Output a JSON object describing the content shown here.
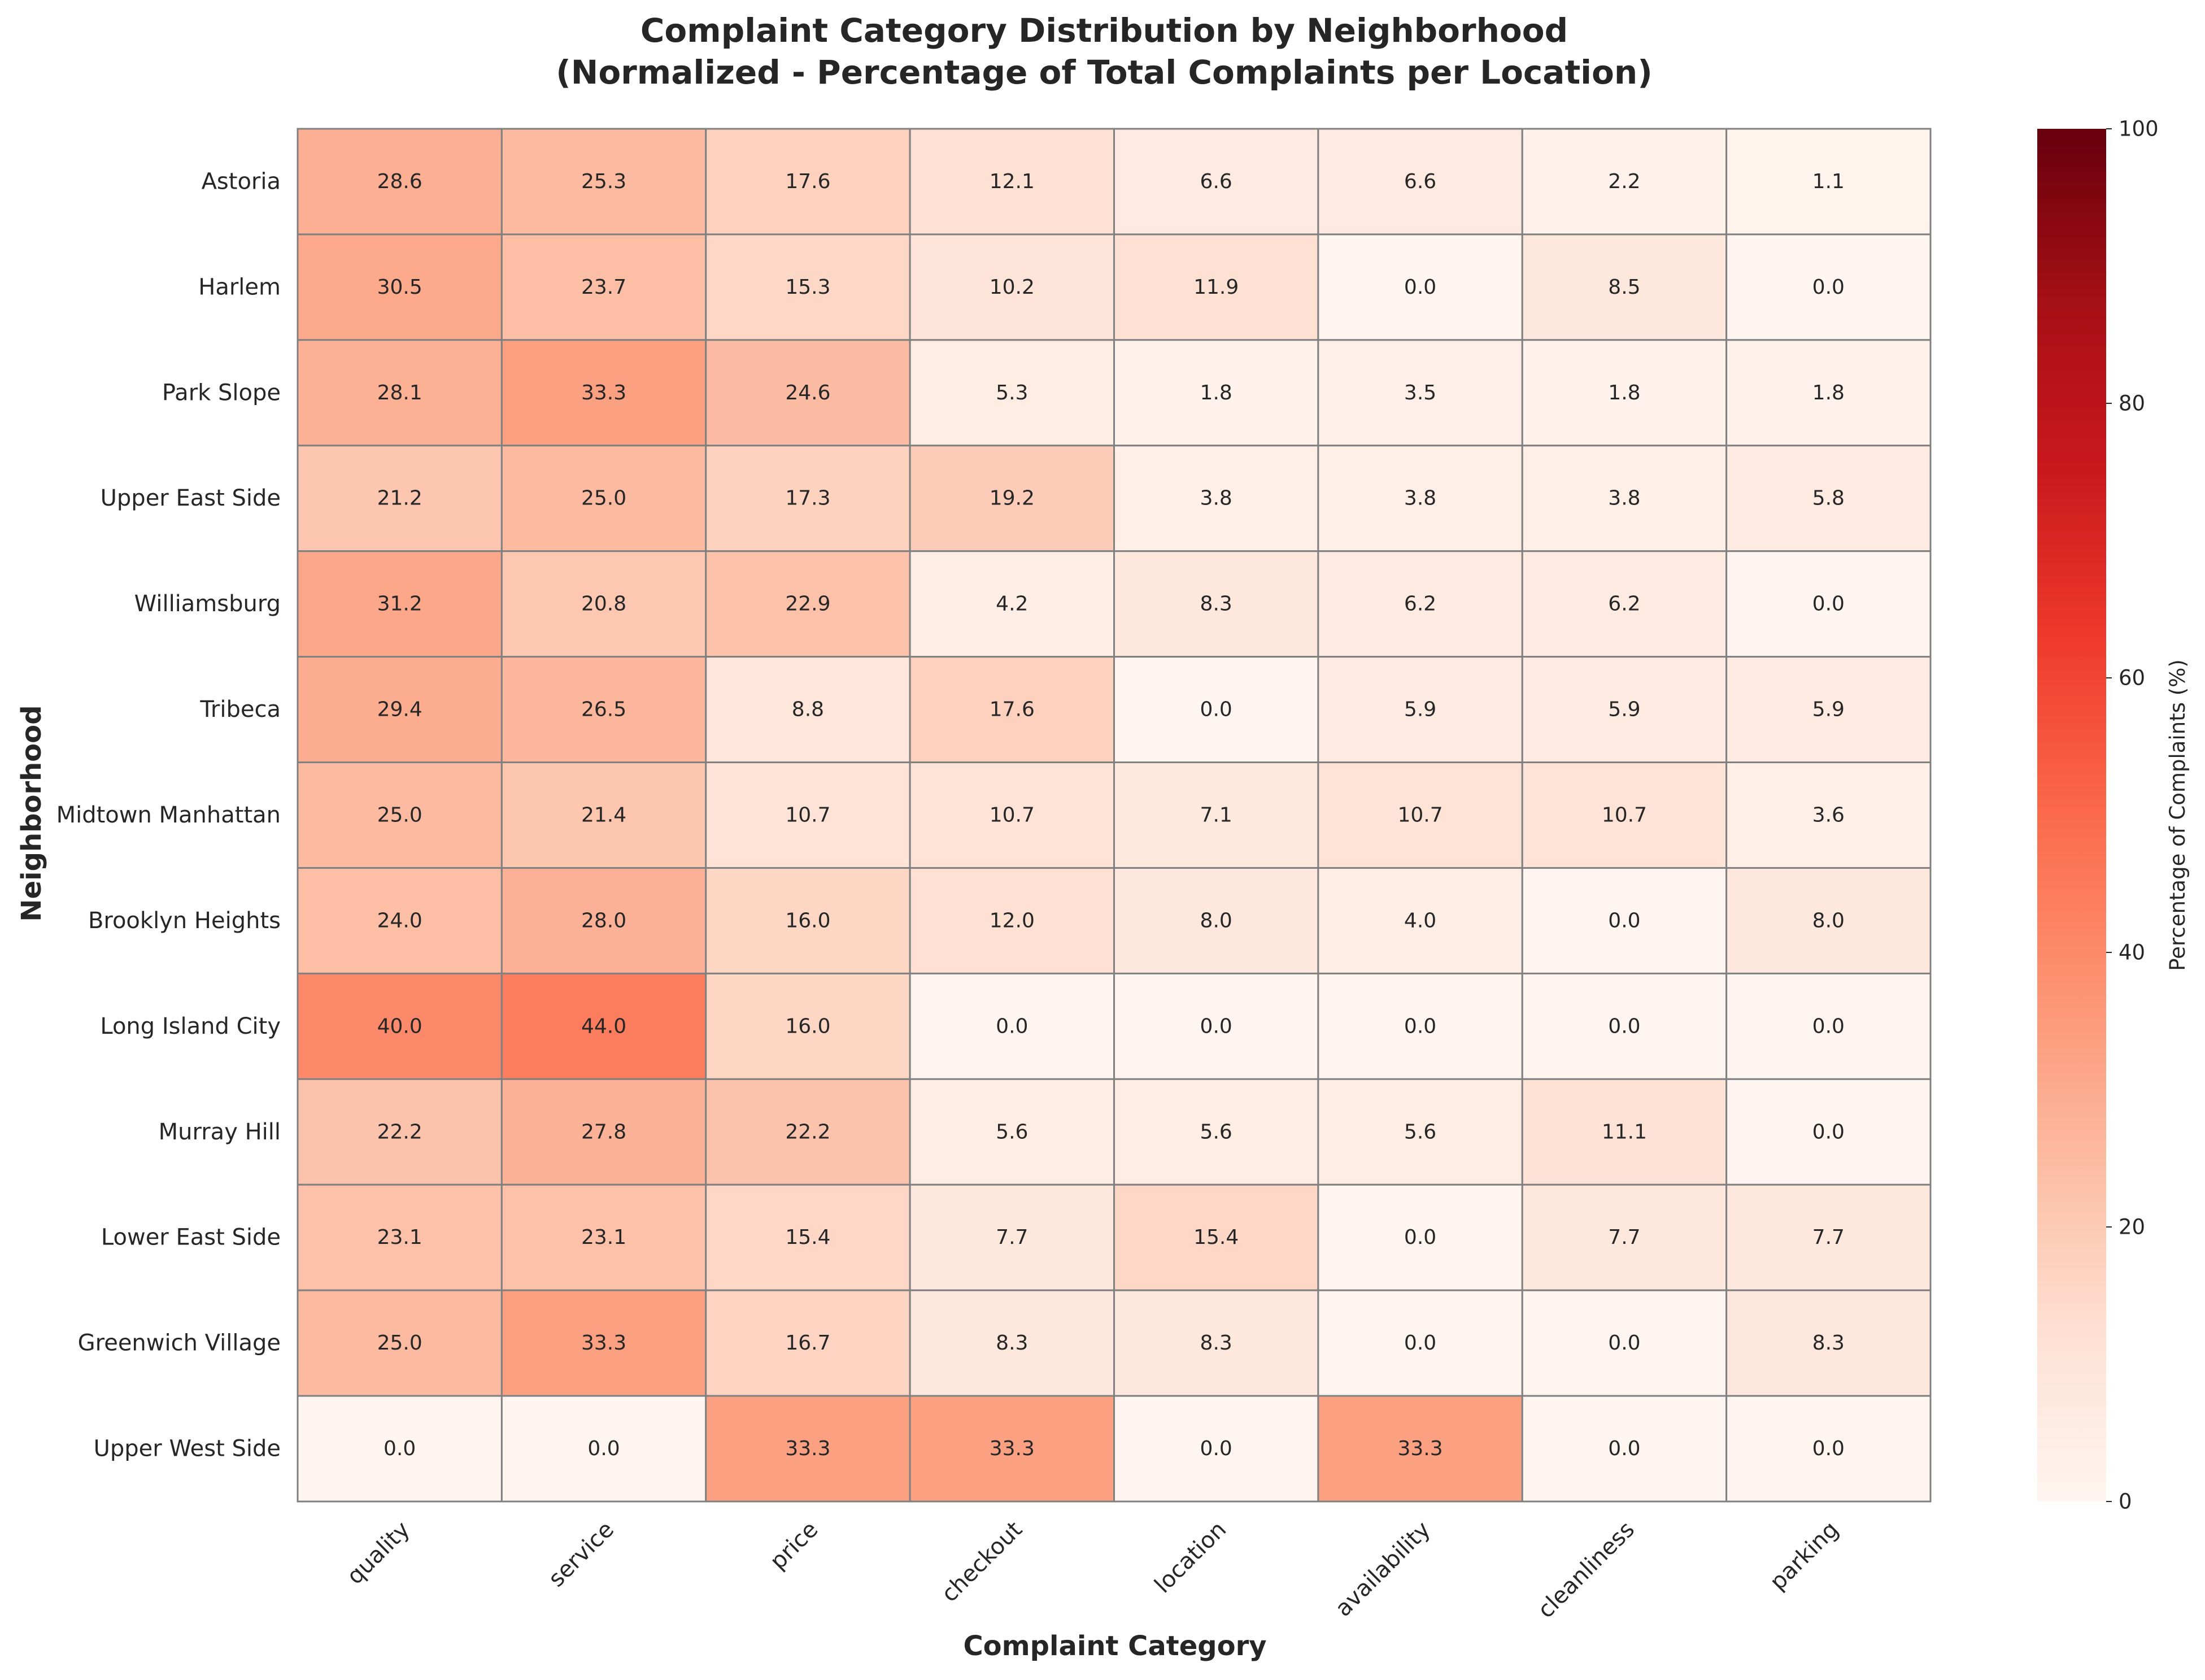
{
  "chart_data": {
    "type": "heatmap",
    "title": "Complaint Category Distribution by Neighborhood",
    "subtitle": "(Normalized - Percentage of Total Complaints per Location)",
    "xlabel": "Complaint Category",
    "ylabel": "Neighborhood",
    "categories": [
      "quality",
      "service",
      "price",
      "checkout",
      "location",
      "availability",
      "cleanliness",
      "parking"
    ],
    "rows": [
      "Astoria",
      "Harlem",
      "Park Slope",
      "Upper East Side",
      "Williamsburg",
      "Tribeca",
      "Midtown Manhattan",
      "Brooklyn Heights",
      "Long Island City",
      "Murray Hill",
      "Lower East Side",
      "Greenwich Village",
      "Upper West Side"
    ],
    "values": [
      [
        28.6,
        25.3,
        17.6,
        12.1,
        6.6,
        6.6,
        2.2,
        1.1
      ],
      [
        30.5,
        23.7,
        15.3,
        10.2,
        11.9,
        0.0,
        8.5,
        0.0
      ],
      [
        28.1,
        33.3,
        24.6,
        5.3,
        1.8,
        3.5,
        1.8,
        1.8
      ],
      [
        21.2,
        25.0,
        17.3,
        19.2,
        3.8,
        3.8,
        3.8,
        5.8
      ],
      [
        31.2,
        20.8,
        22.9,
        4.2,
        8.3,
        6.2,
        6.2,
        0.0
      ],
      [
        29.4,
        26.5,
        8.8,
        17.6,
        0.0,
        5.9,
        5.9,
        5.9
      ],
      [
        25.0,
        21.4,
        10.7,
        10.7,
        7.1,
        10.7,
        10.7,
        3.6
      ],
      [
        24.0,
        28.0,
        16.0,
        12.0,
        8.0,
        4.0,
        0.0,
        8.0
      ],
      [
        40.0,
        44.0,
        16.0,
        0.0,
        0.0,
        0.0,
        0.0,
        0.0
      ],
      [
        22.2,
        27.8,
        22.2,
        5.6,
        5.6,
        5.6,
        11.1,
        0.0
      ],
      [
        23.1,
        23.1,
        15.4,
        7.7,
        15.4,
        0.0,
        7.7,
        7.7
      ],
      [
        25.0,
        33.3,
        16.7,
        8.3,
        8.3,
        0.0,
        0.0,
        8.3
      ],
      [
        0.0,
        0.0,
        33.3,
        33.3,
        0.0,
        33.3,
        0.0,
        0.0
      ]
    ],
    "colorbar": {
      "label": "Percentage of Complaints (%)",
      "range": [
        0,
        100
      ],
      "ticks": [
        0,
        20,
        40,
        60,
        80,
        100
      ],
      "colormap": "Reds"
    },
    "cell_border_color": "#808080"
  }
}
